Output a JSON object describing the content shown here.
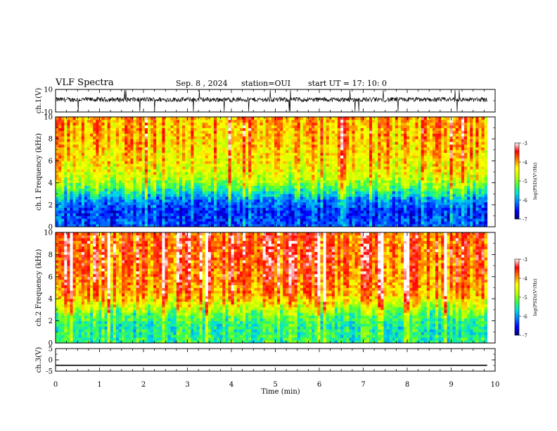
{
  "header": {
    "title": "VLF Spectra",
    "date": "Sep. 8 , 2024",
    "station": "station=OUI",
    "start": "start UT = 17: 10: 0"
  },
  "colors": {
    "ink": "#000000",
    "colormap": [
      "#00007f",
      "#0000ff",
      "#0080ff",
      "#00e0e0",
      "#40ff40",
      "#c0ff00",
      "#ffff00",
      "#ff8000",
      "#ff0000",
      "#ffffff"
    ]
  },
  "chart_data": [
    {
      "type": "line",
      "panel": "ch.1 waveform",
      "ylabel": "ch.1(V)",
      "yticks": [
        "10",
        "-10"
      ],
      "ylim": [
        -10,
        10
      ],
      "xlim": [
        0,
        10
      ],
      "data_end_min": 9.82,
      "note_values": {
        "baseline_v": 1,
        "typical_amplitude_v": 3,
        "spikes_to_v": -10
      }
    },
    {
      "type": "heatmap",
      "panel": "ch.1 spectrogram",
      "ylabel": "ch.1 Frequency (kHz)",
      "yticks": [
        "0",
        "2",
        "4",
        "6",
        "8",
        "10"
      ],
      "ylim": [
        0,
        10
      ],
      "xlim": [
        0,
        10
      ],
      "colorbar": {
        "label": "log(PSD)(V²/Hz)",
        "ticks": [
          "-3",
          "-4",
          "-5",
          "-6",
          "-7"
        ],
        "range": [
          -7,
          -3
        ]
      },
      "profile": [
        {
          "f_khz": 0.5,
          "log_psd": -6.3
        },
        {
          "f_khz": 1.5,
          "log_psd": -6.4
        },
        {
          "f_khz": 2.5,
          "log_psd": -6.0
        },
        {
          "f_khz": 3.5,
          "log_psd": -5.2
        },
        {
          "f_khz": 4.5,
          "log_psd": -4.6
        },
        {
          "f_khz": 6.0,
          "log_psd": -4.3
        },
        {
          "f_khz": 8.0,
          "log_psd": -4.1
        },
        {
          "f_khz": 10.0,
          "log_psd": -4.0
        }
      ]
    },
    {
      "type": "heatmap",
      "panel": "ch.2 spectrogram",
      "ylabel": "ch.2 Frequency (kHz)",
      "yticks": [
        "0",
        "2",
        "4",
        "6",
        "8",
        "10"
      ],
      "ylim": [
        0,
        10
      ],
      "xlim": [
        0,
        10
      ],
      "colorbar": {
        "label": "log(PSD)(V²/Hz)",
        "ticks": [
          "-3",
          "-4",
          "-5",
          "-6",
          "-7"
        ],
        "range": [
          -7,
          -3
        ]
      },
      "profile": [
        {
          "f_khz": 0.5,
          "log_psd": -5.4
        },
        {
          "f_khz": 1.5,
          "log_psd": -5.5
        },
        {
          "f_khz": 2.5,
          "log_psd": -5.2
        },
        {
          "f_khz": 3.5,
          "log_psd": -4.5
        },
        {
          "f_khz": 4.5,
          "log_psd": -4.0
        },
        {
          "f_khz": 6.0,
          "log_psd": -3.8
        },
        {
          "f_khz": 8.0,
          "log_psd": -3.7
        },
        {
          "f_khz": 10.0,
          "log_psd": -3.7
        }
      ]
    },
    {
      "type": "line",
      "panel": "ch.3 waveform",
      "ylabel": "ch.3(V)",
      "yticks": [
        "5",
        "0",
        "-5"
      ],
      "ylim": [
        -5,
        5
      ],
      "xlim": [
        0,
        10
      ],
      "series": [
        {
          "x": [
            0,
            9.82
          ],
          "y": [
            -2.4,
            -2.4
          ]
        }
      ]
    }
  ],
  "xaxis": {
    "label": "Time (min)",
    "ticks": [
      "0",
      "1",
      "2",
      "3",
      "4",
      "5",
      "6",
      "7",
      "8",
      "9",
      "10"
    ],
    "range": [
      0,
      10
    ]
  }
}
